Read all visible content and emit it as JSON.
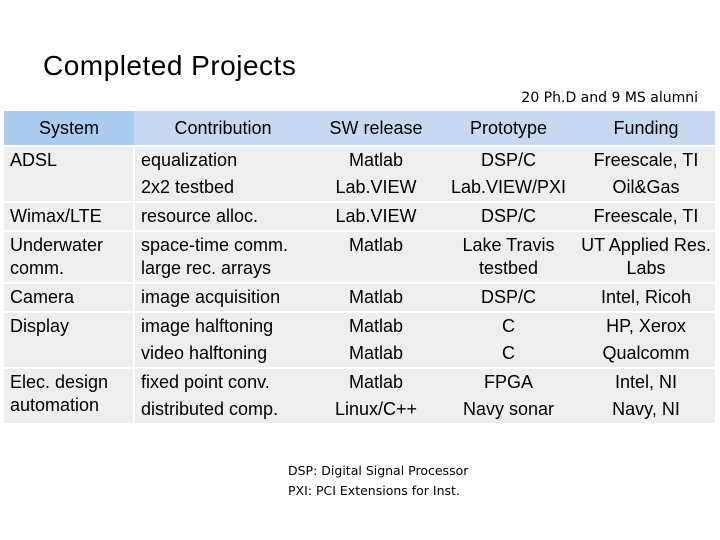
{
  "title": "Completed Projects",
  "alumni": "20 Ph.D and 9 MS alumni",
  "headers": [
    "System",
    "Contribution",
    "SW release",
    "Prototype",
    "Funding"
  ],
  "rows": [
    {
      "system": "ADSL",
      "contribution": "equalization",
      "sw": "Matlab",
      "prototype": "DSP/C",
      "funding": "Freescale, TI"
    },
    {
      "system": "",
      "contribution": "2x2 testbed",
      "sw": "Lab.VIEW",
      "prototype": "Lab.VIEW/PXI",
      "funding": "Oil&Gas"
    },
    {
      "system": "Wimax/LTE",
      "contribution": "resource alloc.",
      "sw": "Lab.VIEW",
      "prototype": "DSP/C",
      "funding": "Freescale, TI"
    },
    {
      "system": "Underwater comm.",
      "contribution": "space-time comm. large rec. arrays",
      "sw": "Matlab",
      "prototype": "Lake Travis testbed",
      "funding": "UT Applied Res. Labs"
    },
    {
      "system": "Camera",
      "contribution": "image acquisition",
      "sw": "Matlab",
      "prototype": "DSP/C",
      "funding": "Intel, Ricoh"
    },
    {
      "system": "Display",
      "contribution": "image halftoning",
      "sw": "Matlab",
      "prototype": "C",
      "funding": "HP, Xerox"
    },
    {
      "system": "",
      "contribution": "video halftoning",
      "sw": "Matlab",
      "prototype": "C",
      "funding": "Qualcomm"
    },
    {
      "system": "Elec. design automation",
      "contribution": "fixed point conv.",
      "sw": "Matlab",
      "prototype": "FPGA",
      "funding": "Intel, NI"
    },
    {
      "system": "",
      "contribution": "distributed comp.",
      "sw": "Linux/C++",
      "prototype": "Navy sonar",
      "funding": "Navy, NI"
    }
  ],
  "notes": [
    "DSP: Digital Signal Processor",
    "PXI: PCI Extensions for Inst."
  ]
}
